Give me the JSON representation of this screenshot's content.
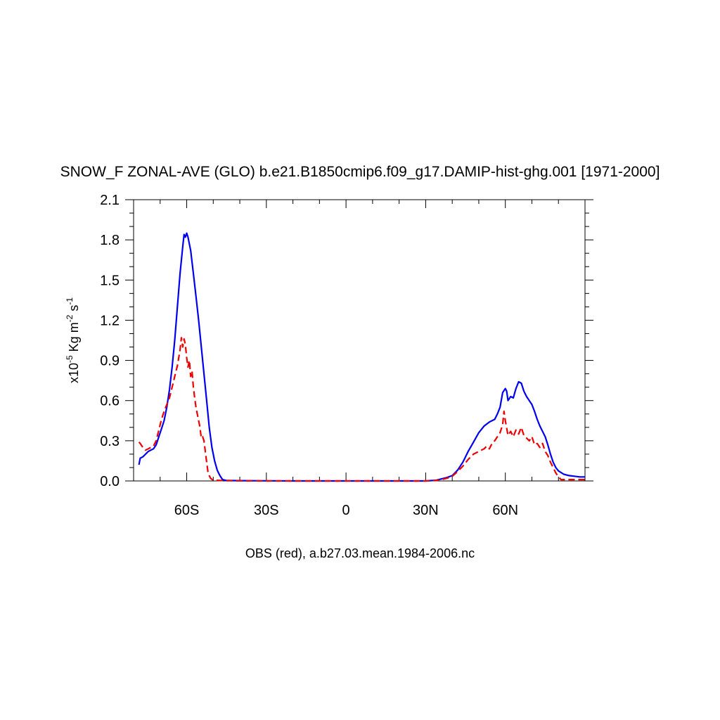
{
  "chart_data": {
    "type": "line",
    "title": "SNOW_F ZONAL-AVE (GLO) b.e21.B1850cmip6.f09_g17.DAMIP-hist-ghg.001 [1971-2000]",
    "xlabel": "OBS (red), a.b27.03.mean.1984-2006.nc",
    "ylabel": {
      "base": "x10",
      "base_exp": "-5",
      "unit1": " Kg m",
      "unit1_exp": "-2",
      "unit2": " s",
      "unit2_exp": "-1"
    },
    "xlim": [
      -80,
      90
    ],
    "ylim": [
      0,
      2.1
    ],
    "x_ticks": [
      {
        "value": -60,
        "label": "60S"
      },
      {
        "value": -30,
        "label": "30S"
      },
      {
        "value": 0,
        "label": "0"
      },
      {
        "value": 30,
        "label": "30N"
      },
      {
        "value": 60,
        "label": "60N"
      }
    ],
    "y_ticks": [
      {
        "value": 0.0,
        "label": "0.0"
      },
      {
        "value": 0.3,
        "label": "0.3"
      },
      {
        "value": 0.6,
        "label": "0.6"
      },
      {
        "value": 0.9,
        "label": "0.9"
      },
      {
        "value": 1.2,
        "label": "1.2"
      },
      {
        "value": 1.5,
        "label": "1.5"
      },
      {
        "value": 1.8,
        "label": "1.8"
      },
      {
        "value": 2.1,
        "label": "2.1"
      }
    ],
    "grid": false,
    "series": [
      {
        "color": "#0000ee",
        "dash": "solid",
        "points": [
          [
            -78,
            0.12
          ],
          [
            -77.5,
            0.17
          ],
          [
            -76.5,
            0.18
          ],
          [
            -75.5,
            0.2
          ],
          [
            -74.5,
            0.22
          ],
          [
            -73.5,
            0.23
          ],
          [
            -72.5,
            0.24
          ],
          [
            -71.5,
            0.27
          ],
          [
            -70.5,
            0.33
          ],
          [
            -69.5,
            0.39
          ],
          [
            -68.5,
            0.45
          ],
          [
            -67.5,
            0.55
          ],
          [
            -66.5,
            0.68
          ],
          [
            -65.5,
            0.85
          ],
          [
            -64.5,
            1.05
          ],
          [
            -63.5,
            1.3
          ],
          [
            -62.5,
            1.55
          ],
          [
            -61.5,
            1.75
          ],
          [
            -61,
            1.84
          ],
          [
            -60.5,
            1.82
          ],
          [
            -60,
            1.85
          ],
          [
            -59.5,
            1.82
          ],
          [
            -58.5,
            1.72
          ],
          [
            -57.5,
            1.55
          ],
          [
            -56.5,
            1.38
          ],
          [
            -55.5,
            1.2
          ],
          [
            -54.5,
            1.0
          ],
          [
            -53.5,
            0.8
          ],
          [
            -52.5,
            0.6
          ],
          [
            -51.5,
            0.4
          ],
          [
            -50.5,
            0.25
          ],
          [
            -49.5,
            0.15
          ],
          [
            -48.5,
            0.08
          ],
          [
            -47.5,
            0.04
          ],
          [
            -46.5,
            0.01
          ],
          [
            -45,
            0.003
          ],
          [
            -40,
            0.002
          ],
          [
            -30,
            0.001
          ],
          [
            -20,
            0.0
          ],
          [
            -10,
            0.0
          ],
          [
            0,
            0.0
          ],
          [
            10,
            0.0
          ],
          [
            20,
            0.0
          ],
          [
            30,
            0.0
          ],
          [
            34,
            0.005
          ],
          [
            36,
            0.015
          ],
          [
            38,
            0.025
          ],
          [
            40,
            0.04
          ],
          [
            42,
            0.08
          ],
          [
            44,
            0.14
          ],
          [
            46,
            0.22
          ],
          [
            48,
            0.29
          ],
          [
            50,
            0.36
          ],
          [
            52,
            0.41
          ],
          [
            54,
            0.44
          ],
          [
            56,
            0.46
          ],
          [
            57,
            0.5
          ],
          [
            58,
            0.55
          ],
          [
            59,
            0.66
          ],
          [
            60,
            0.69
          ],
          [
            60.5,
            0.67
          ],
          [
            61,
            0.6
          ],
          [
            62,
            0.63
          ],
          [
            63,
            0.62
          ],
          [
            64,
            0.69
          ],
          [
            65,
            0.74
          ],
          [
            66,
            0.73
          ],
          [
            67,
            0.67
          ],
          [
            68,
            0.63
          ],
          [
            69,
            0.6
          ],
          [
            70,
            0.57
          ],
          [
            71,
            0.52
          ],
          [
            72,
            0.46
          ],
          [
            73,
            0.41
          ],
          [
            74,
            0.37
          ],
          [
            75,
            0.33
          ],
          [
            76,
            0.27
          ],
          [
            77,
            0.2
          ],
          [
            78,
            0.14
          ],
          [
            79,
            0.1
          ],
          [
            80,
            0.075
          ],
          [
            82,
            0.05
          ],
          [
            84,
            0.04
          ],
          [
            86,
            0.035
          ],
          [
            88,
            0.03
          ],
          [
            90,
            0.03
          ]
        ]
      },
      {
        "color": "#ee0000",
        "dash": "dashed",
        "points": [
          [
            -78,
            0.29
          ],
          [
            -77.5,
            0.28
          ],
          [
            -76.5,
            0.25
          ],
          [
            -75.5,
            0.23
          ],
          [
            -74.5,
            0.24
          ],
          [
            -73.5,
            0.25
          ],
          [
            -72.5,
            0.26
          ],
          [
            -71.5,
            0.3
          ],
          [
            -70.5,
            0.38
          ],
          [
            -69.5,
            0.46
          ],
          [
            -68.5,
            0.52
          ],
          [
            -67.5,
            0.57
          ],
          [
            -66.5,
            0.62
          ],
          [
            -65.5,
            0.7
          ],
          [
            -64.5,
            0.78
          ],
          [
            -63.5,
            0.86
          ],
          [
            -62.5,
            0.98
          ],
          [
            -62,
            1.07
          ],
          [
            -61.5,
            1.0
          ],
          [
            -61,
            1.06
          ],
          [
            -60.5,
            1.02
          ],
          [
            -60,
            0.92
          ],
          [
            -59.5,
            0.85
          ],
          [
            -59,
            0.9
          ],
          [
            -58.5,
            0.78
          ],
          [
            -58,
            0.82
          ],
          [
            -57.5,
            0.7
          ],
          [
            -57,
            0.62
          ],
          [
            -56.5,
            0.55
          ],
          [
            -56,
            0.5
          ],
          [
            -55.5,
            0.45
          ],
          [
            -55,
            0.4
          ],
          [
            -54.5,
            0.32
          ],
          [
            -54,
            0.33
          ],
          [
            -53.5,
            0.3
          ],
          [
            -53,
            0.22
          ],
          [
            -52.5,
            0.14
          ],
          [
            -52,
            0.07
          ],
          [
            -51.5,
            0.04
          ],
          [
            -51,
            0.02
          ],
          [
            -50,
            0.005
          ],
          [
            -45,
            0.002
          ],
          [
            -40,
            0.001
          ],
          [
            -30,
            0.0
          ],
          [
            -20,
            0.0
          ],
          [
            -10,
            0.0
          ],
          [
            0,
            0.0
          ],
          [
            10,
            0.0
          ],
          [
            20,
            0.0
          ],
          [
            30,
            0.0
          ],
          [
            34,
            0.003
          ],
          [
            36,
            0.01
          ],
          [
            38,
            0.02
          ],
          [
            40,
            0.035
          ],
          [
            42,
            0.07
          ],
          [
            44,
            0.11
          ],
          [
            46,
            0.16
          ],
          [
            48,
            0.2
          ],
          [
            50,
            0.22
          ],
          [
            52,
            0.24
          ],
          [
            53,
            0.26
          ],
          [
            54,
            0.24
          ],
          [
            55,
            0.28
          ],
          [
            56,
            0.3
          ],
          [
            57,
            0.33
          ],
          [
            58,
            0.36
          ],
          [
            59,
            0.42
          ],
          [
            59.5,
            0.52
          ],
          [
            60,
            0.45
          ],
          [
            61,
            0.34
          ],
          [
            62,
            0.37
          ],
          [
            63,
            0.33
          ],
          [
            64,
            0.38
          ],
          [
            65,
            0.35
          ],
          [
            66,
            0.4
          ],
          [
            67,
            0.34
          ],
          [
            68,
            0.32
          ],
          [
            69,
            0.3
          ],
          [
            70,
            0.33
          ],
          [
            71,
            0.27
          ],
          [
            72,
            0.28
          ],
          [
            73,
            0.25
          ],
          [
            74,
            0.28
          ],
          [
            75,
            0.22
          ],
          [
            76,
            0.19
          ],
          [
            77,
            0.14
          ],
          [
            78,
            0.1
          ],
          [
            79,
            0.06
          ],
          [
            80,
            0.03
          ],
          [
            81,
            0.01
          ],
          [
            82,
            0.01
          ],
          [
            84,
            0.01
          ],
          [
            86,
            0.01
          ],
          [
            88,
            0.01
          ],
          [
            90,
            0.01
          ]
        ]
      }
    ]
  }
}
